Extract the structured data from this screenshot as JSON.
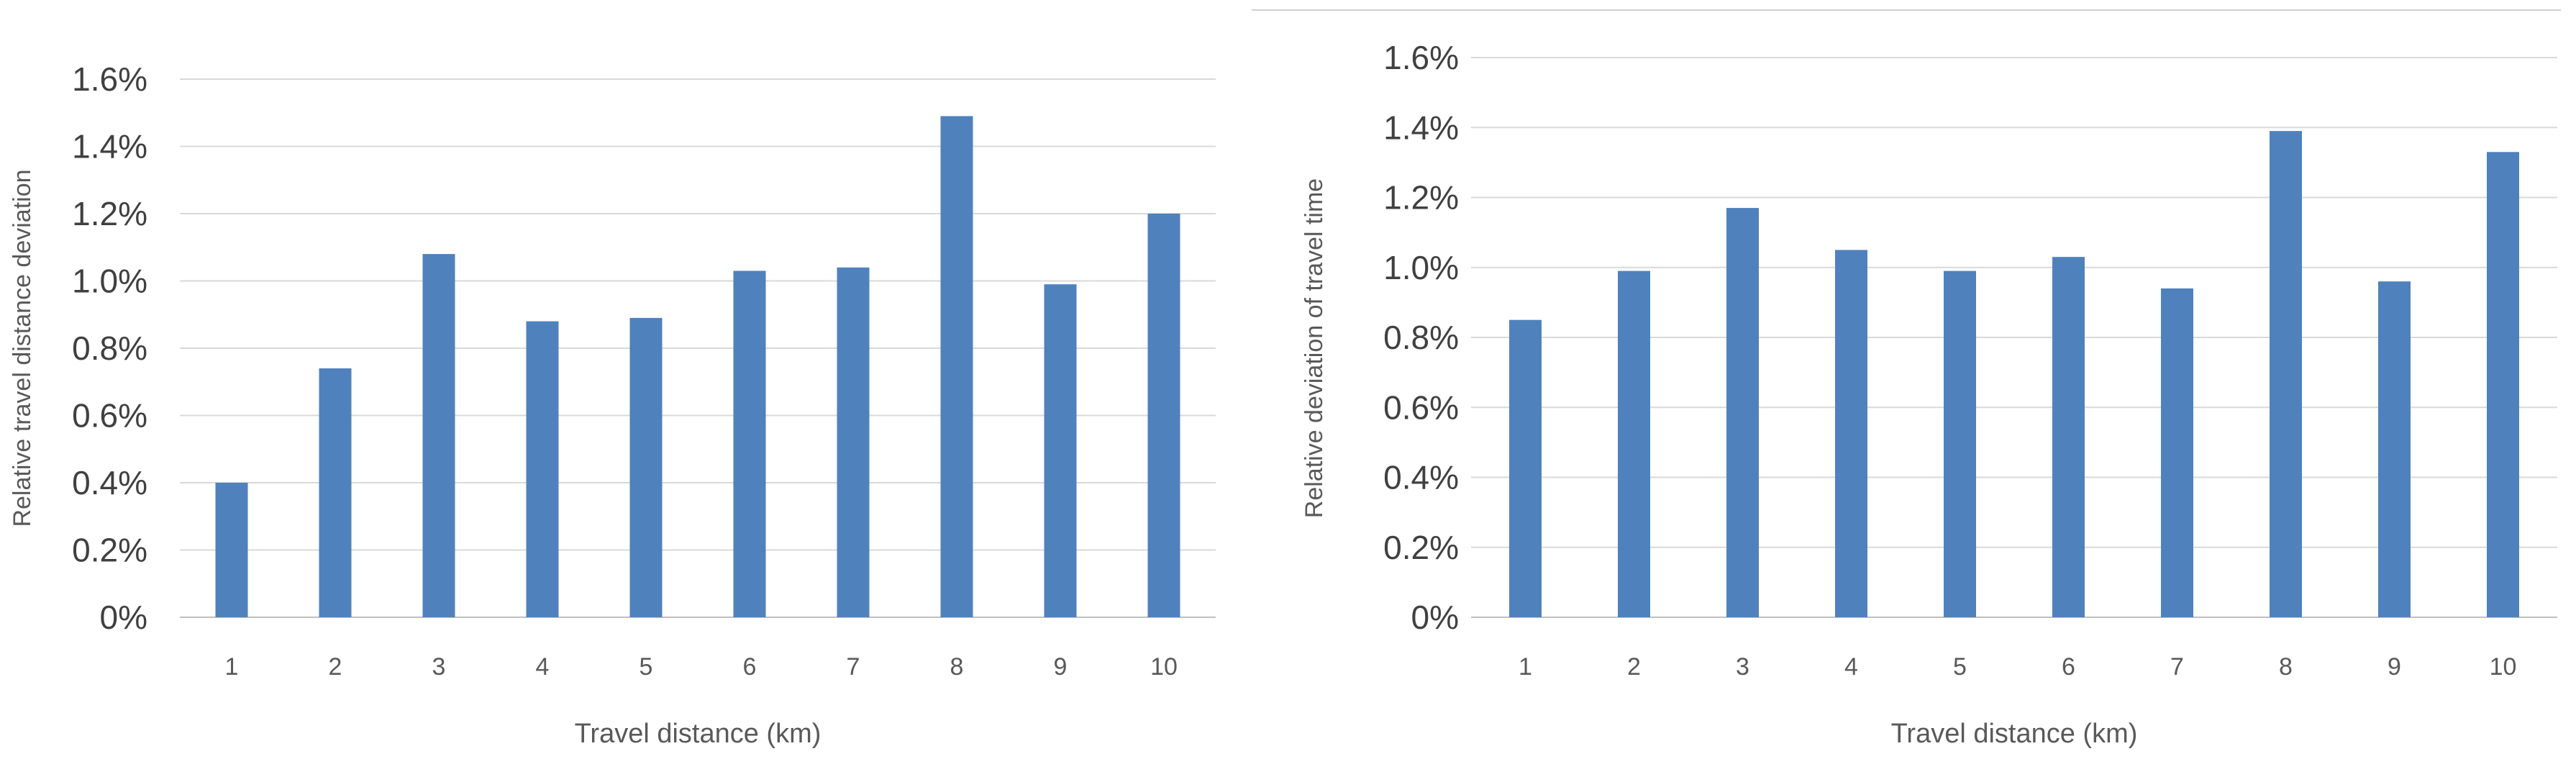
{
  "chart_data": [
    {
      "type": "bar",
      "categories": [
        "1",
        "2",
        "3",
        "4",
        "5",
        "6",
        "7",
        "8",
        "9",
        "10"
      ],
      "values": [
        0.4,
        0.74,
        1.08,
        0.88,
        0.89,
        1.03,
        1.04,
        1.49,
        0.99,
        1.2
      ],
      "xlabel": "Travel distance (km)",
      "ylabel": "Relative travel distance deviation",
      "ylim": [
        0,
        1.6
      ],
      "yticks": [
        "0%",
        "0.2%",
        "0.4%",
        "0.6%",
        "0.8%",
        "1.0%",
        "1.2%",
        "1.4%",
        "1.6%"
      ],
      "bar_color": "#4f81bd",
      "grid": true,
      "legend": "none"
    },
    {
      "type": "bar",
      "categories": [
        "1",
        "2",
        "3",
        "4",
        "5",
        "6",
        "7",
        "8",
        "9",
        "10"
      ],
      "values": [
        0.85,
        0.99,
        1.17,
        1.05,
        0.99,
        1.03,
        0.94,
        1.39,
        0.96,
        1.33
      ],
      "xlabel": "Travel distance (km)",
      "ylabel": "Relative deviation of travel time",
      "ylim": [
        0,
        1.6
      ],
      "yticks": [
        "0%",
        "0.2%",
        "0.4%",
        "0.6%",
        "0.8%",
        "1.0%",
        "1.2%",
        "1.4%",
        "1.6%"
      ],
      "bar_color": "#4f81bd",
      "grid": true,
      "legend": "none"
    }
  ]
}
